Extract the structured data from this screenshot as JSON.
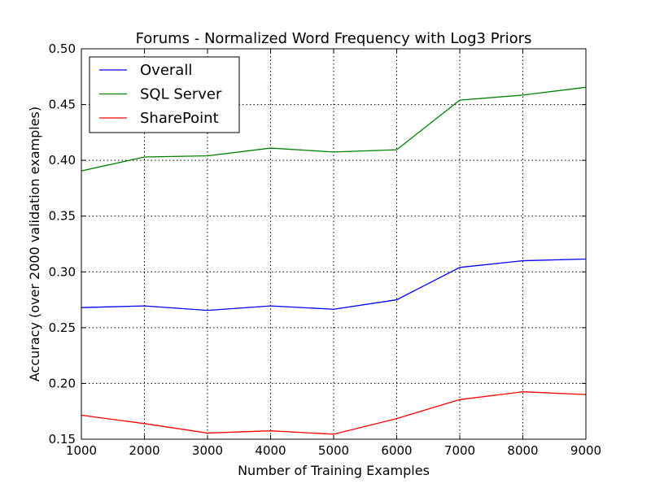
{
  "chart_data": {
    "type": "line",
    "title": "Forums - Normalized Word Frequency with Log3 Priors",
    "xlabel": "Number of Training Examples",
    "ylabel": "Accuracy (over 2000 validation examples)",
    "xlim": [
      1000,
      9000
    ],
    "ylim": [
      0.15,
      0.5
    ],
    "xticks": [
      "1000",
      "2000",
      "3000",
      "4000",
      "5000",
      "6000",
      "7000",
      "8000",
      "9000"
    ],
    "yticks": [
      "0.15",
      "0.20",
      "0.25",
      "0.30",
      "0.35",
      "0.40",
      "0.45",
      "0.50"
    ],
    "grid": true,
    "legend_position": "top-left",
    "x": [
      1000,
      2000,
      3000,
      4000,
      5000,
      6000,
      7000,
      8000,
      9000
    ],
    "series": [
      {
        "name": "Overall",
        "color": "#0000ff",
        "values": [
          0.268,
          0.2695,
          0.2655,
          0.2695,
          0.2665,
          0.275,
          0.304,
          0.31,
          0.3115
        ]
      },
      {
        "name": "SQL Server",
        "color": "#008000",
        "values": [
          0.3905,
          0.403,
          0.404,
          0.411,
          0.4075,
          0.4095,
          0.454,
          0.4585,
          0.4655
        ]
      },
      {
        "name": "SharePoint",
        "color": "#ff0000",
        "values": [
          0.1715,
          0.164,
          0.1555,
          0.1575,
          0.1545,
          0.1685,
          0.1855,
          0.1925,
          0.19
        ]
      }
    ]
  }
}
